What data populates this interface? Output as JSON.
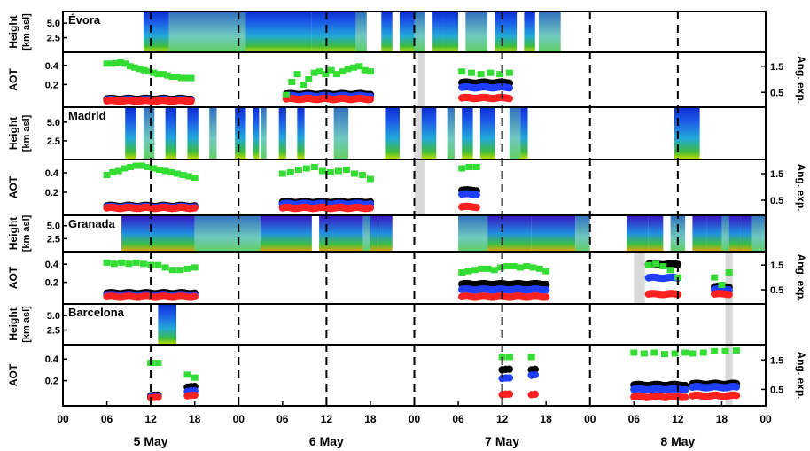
{
  "chart_data": {
    "type": "scatter",
    "x_axis": {
      "range_hours": [
        0,
        96
      ],
      "tick_labels": [
        "00",
        "06",
        "12",
        "18",
        "00",
        "06",
        "12",
        "18",
        "00",
        "06",
        "12",
        "18",
        "00",
        "06",
        "12",
        "18",
        "00"
      ],
      "tick_hours": [
        0,
        6,
        12,
        18,
        24,
        30,
        36,
        42,
        48,
        54,
        60,
        66,
        72,
        78,
        84,
        90,
        96
      ],
      "day_labels": [
        "5 May",
        "6 May",
        "7 May",
        "8 May"
      ],
      "day_label_hours": [
        12,
        36,
        60,
        84
      ],
      "midnight_dashes_hours": [
        0,
        12,
        24,
        36,
        48,
        60,
        72,
        84
      ]
    },
    "height_axis": {
      "label": "Height\n[km asl]",
      "tick_labels": [
        "5.0",
        "2.5"
      ],
      "ticks": [
        5.0,
        2.5
      ],
      "range": [
        0,
        7
      ]
    },
    "aot_axis": {
      "label": "AOT",
      "tick_labels": [
        "0.4",
        "0.2"
      ],
      "ticks": [
        0.4,
        0.2
      ],
      "range": [
        0,
        0.5
      ]
    },
    "ang_axis": {
      "label": "Ang. exp.",
      "tick_labels": [
        "1.5",
        "0.5"
      ],
      "ticks": [
        1.5,
        0.5
      ],
      "range": [
        0,
        1.9
      ]
    },
    "colors": {
      "aot_black": "#000000",
      "aot_blue": "#1f3fff",
      "aot_red": "#ff2020",
      "angstrom": "#33dd33",
      "gap": "#d9d9d9"
    },
    "stations": [
      {
        "name": "Évora",
        "lidar_segments": [
          [
            11,
            14.5
          ],
          [
            14.5,
            25
          ],
          [
            25,
            34
          ],
          [
            34,
            40
          ],
          [
            40,
            41.5
          ],
          [
            43.5,
            45
          ],
          [
            46,
            48
          ],
          [
            48,
            49.5
          ],
          [
            50.5,
            52
          ],
          [
            52,
            54
          ],
          [
            55,
            58
          ],
          [
            59,
            62
          ],
          [
            63,
            64.5
          ],
          [
            65,
            68
          ]
        ],
        "gray_bands": [
          [
            48.5,
            49.5
          ]
        ],
        "aot_sessions": [
          {
            "start": 6,
            "end": 17.5,
            "black": 0.05,
            "blue": 0.04,
            "red": 0.03,
            "ang": [
              1.6,
              1.6,
              1.62,
              1.65,
              1.6,
              1.5,
              1.45,
              1.4,
              1.35,
              1.3,
              1.25,
              1.2,
              1.2,
              1.15,
              1.1,
              1.1,
              1.05,
              1.05,
              1.05
            ]
          },
          {
            "start": 30.5,
            "end": 42,
            "black": 0.1,
            "blue": 0.08,
            "red": 0.05,
            "ang": [
              0.4,
              0.9,
              1.2,
              0.8,
              1.0,
              1.25,
              1.3,
              1.2,
              1.35,
              1.2,
              1.3,
              1.4,
              1.45,
              1.5,
              1.35,
              1.3
            ]
          },
          {
            "start": 54.5,
            "end": 61,
            "black": 0.22,
            "blue": 0.17,
            "red": 0.06,
            "ang": [
              1.3,
              1.25,
              1.2,
              1.25,
              1.2,
              1.25
            ]
          }
        ]
      },
      {
        "name": "Madrid",
        "lidar_segments": [
          [
            8.5,
            10
          ],
          [
            11,
            12.5
          ],
          [
            14,
            15.5
          ],
          [
            17,
            18.5
          ],
          [
            20,
            21
          ],
          [
            23.5,
            25
          ],
          [
            26,
            26.8
          ],
          [
            27,
            27.8
          ],
          [
            29.5,
            30.5
          ],
          [
            32,
            33
          ],
          [
            37,
            39
          ],
          [
            44,
            46
          ],
          [
            49,
            51
          ],
          [
            52.5,
            53.5
          ],
          [
            54.5,
            56
          ],
          [
            57,
            59
          ],
          [
            61,
            62.5
          ],
          [
            62.5,
            63.5
          ],
          [
            83.5,
            87
          ]
        ],
        "gray_bands": [
          [
            48,
            49.5
          ]
        ],
        "aot_sessions": [
          {
            "start": 6,
            "end": 18,
            "black": 0.06,
            "blue": 0.05,
            "red": 0.04,
            "ang": [
              1.45,
              1.55,
              1.6,
              1.7,
              1.75,
              1.8,
              1.8,
              1.75,
              1.7,
              1.65,
              1.6,
              1.55,
              1.5,
              1.45,
              1.4,
              1.35
            ]
          },
          {
            "start": 30,
            "end": 42,
            "black": 0.1,
            "blue": 0.08,
            "red": 0.04,
            "ang": [
              1.5,
              1.55,
              1.65,
              1.7,
              1.75,
              1.6,
              1.55,
              1.6,
              1.65,
              1.5,
              1.45,
              1.3
            ]
          },
          {
            "start": 54.5,
            "end": 56.5,
            "black": 0.22,
            "blue": 0.18,
            "red": 0.05,
            "ang": [
              1.7,
              1.75,
              1.75
            ]
          }
        ]
      },
      {
        "name": "Granada",
        "lidar_segments": [
          [
            8,
            18
          ],
          [
            18,
            27
          ],
          [
            27,
            34
          ],
          [
            35,
            41
          ],
          [
            41,
            42
          ],
          [
            42,
            43
          ],
          [
            43,
            45
          ],
          [
            54,
            58
          ],
          [
            58,
            64
          ],
          [
            64,
            70
          ],
          [
            70,
            72
          ],
          [
            77,
            80
          ],
          [
            80,
            82
          ],
          [
            83,
            85
          ],
          [
            86,
            88
          ],
          [
            88,
            90
          ],
          [
            90,
            91
          ],
          [
            91,
            93
          ],
          [
            93,
            94
          ],
          [
            94,
            96
          ]
        ],
        "gray_bands": [
          [
            78,
            79.5
          ],
          [
            90.5,
            91.5
          ]
        ],
        "aot_sessions": [
          {
            "start": 6,
            "end": 18,
            "black": 0.08,
            "blue": 0.06,
            "red": 0.04,
            "ang": [
              1.6,
              1.55,
              1.6,
              1.55,
              1.6,
              1.55,
              1.5,
              1.5,
              1.4,
              1.3,
              1.3,
              1.35,
              1.4
            ]
          },
          {
            "start": 54.5,
            "end": 66,
            "black": 0.18,
            "blue": 0.12,
            "red": 0.04,
            "ang": [
              1.2,
              1.25,
              1.3,
              1.35,
              1.35,
              1.3,
              1.4,
              1.45,
              1.45,
              1.4,
              1.45,
              1.4,
              1.35,
              1.25
            ]
          },
          {
            "start": 80,
            "end": 84,
            "black": 0.4,
            "blue": 0.25,
            "red": 0.07,
            "ang": [
              1.5,
              1.55,
              1.45,
              1.3,
              1.0
            ]
          },
          {
            "start": 89,
            "end": 91,
            "black": 0.15,
            "blue": 0.12,
            "red": 0.07,
            "ang": [
              1.0,
              0.7,
              1.2
            ]
          }
        ]
      },
      {
        "name": "Barcelona",
        "lidar_segments": [
          [
            13,
            15.5
          ]
        ],
        "gray_bands": [
          [
            90.5,
            91.5
          ]
        ],
        "aot_sessions": [
          {
            "start": 12,
            "end": 13,
            "black": 0.06,
            "blue": 0.05,
            "red": 0.04,
            "ang": [
              1.4,
              1.4
            ]
          },
          {
            "start": 17,
            "end": 18,
            "black": 0.14,
            "blue": 0.1,
            "red": 0.06,
            "ang": [
              1.0,
              0.9
            ]
          },
          {
            "start": 60,
            "end": 61,
            "black": 0.3,
            "blue": 0.22,
            "red": 0.07,
            "ang": [
              1.6,
              1.6
            ]
          },
          {
            "start": 64,
            "end": 64.5,
            "black": 0.3,
            "blue": 0.25,
            "red": 0.07,
            "ang": [
              1.6
            ]
          },
          {
            "start": 78,
            "end": 85,
            "black": 0.16,
            "blue": 0.12,
            "red": 0.05,
            "ang": [
              1.75,
              1.72,
              1.75,
              1.7,
              1.72,
              1.75
            ]
          },
          {
            "start": 86,
            "end": 92,
            "black": 0.17,
            "blue": 0.14,
            "red": 0.06,
            "ang": [
              1.72,
              1.75,
              1.8,
              1.8,
              1.82
            ]
          }
        ]
      }
    ]
  }
}
